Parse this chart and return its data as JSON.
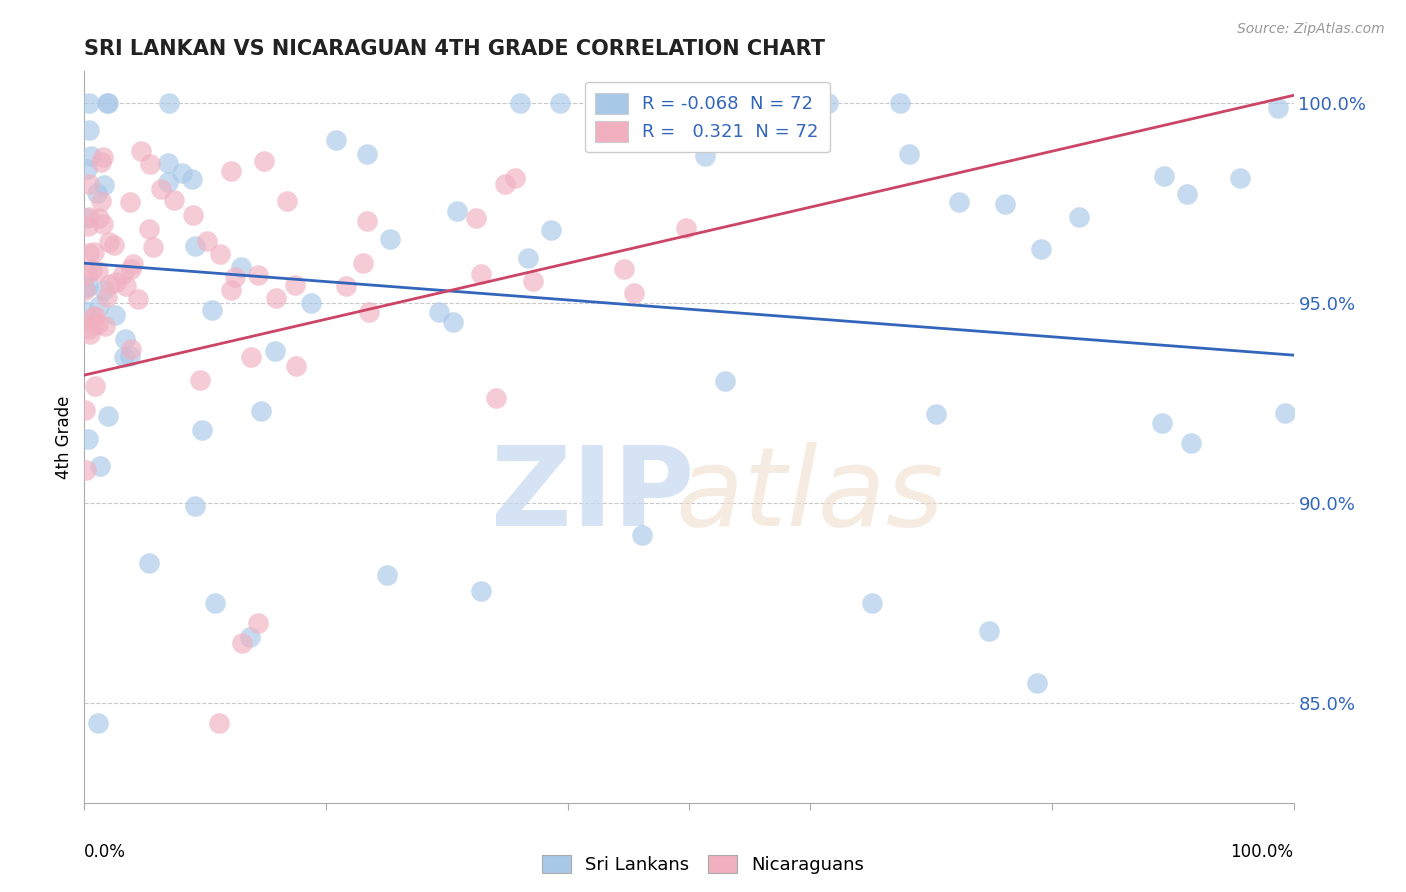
{
  "title": "SRI LANKAN VS NICARAGUAN 4TH GRADE CORRELATION CHART",
  "source_text": "Source: ZipAtlas.com",
  "ylabel": "4th Grade",
  "xlim": [
    0.0,
    1.0
  ],
  "ylim": [
    0.825,
    1.008
  ],
  "yticks": [
    0.85,
    0.9,
    0.95,
    1.0
  ],
  "ytick_labels": [
    "85.0%",
    "90.0%",
    "95.0%",
    "100.0%"
  ],
  "legend_blue_r": "-0.068",
  "legend_blue_n": "72",
  "legend_pink_r": "0.321",
  "legend_pink_n": "72",
  "blue_color": "#a8c8e8",
  "pink_color": "#f0b0c0",
  "blue_line_color": "#3366bb",
  "pink_line_color": "#cc4466",
  "blue_line_y_start": 0.96,
  "blue_line_y_end": 0.937,
  "pink_line_y_start": 0.932,
  "pink_line_y_end": 1.002,
  "grid_color": "#bbbbbb",
  "tick_color": "#3366bb",
  "background": "#ffffff",
  "seed": 99
}
